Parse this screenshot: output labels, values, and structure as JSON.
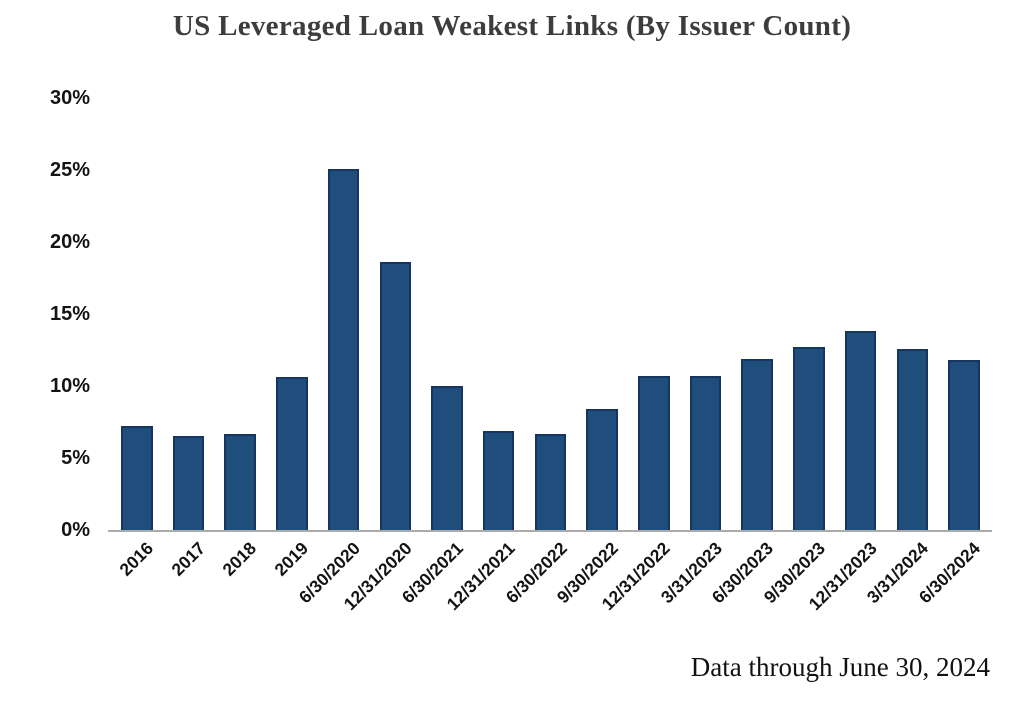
{
  "title": "US Leveraged Loan Weakest Links (By Issuer Count)",
  "footnote": "Data through June 30, 2024",
  "chart_data": {
    "type": "bar",
    "title": "US Leveraged Loan Weakest Links (By Issuer Count)",
    "categories": [
      "2016",
      "2017",
      "2018",
      "2019",
      "6/30/2020",
      "12/31/2020",
      "6/30/2021",
      "12/31/2021",
      "6/30/2022",
      "9/30/2022",
      "12/31/2022",
      "3/31/2023",
      "6/30/2023",
      "9/30/2023",
      "12/31/2023",
      "3/31/2024",
      "6/30/2024"
    ],
    "values": [
      7.2,
      6.5,
      6.7,
      10.6,
      25.1,
      18.6,
      10.0,
      6.9,
      6.7,
      8.4,
      10.7,
      10.7,
      11.9,
      12.7,
      13.8,
      12.6,
      11.8
    ],
    "value_unit": "%",
    "xlabel": "",
    "ylabel": "",
    "yticks": [
      0,
      5,
      10,
      15,
      20,
      25,
      30
    ],
    "ytick_suffix": "%",
    "ylim": [
      0,
      30
    ],
    "grid": false,
    "legend": false,
    "annotation": "Data through June 30, 2024",
    "colors": {
      "bar_fill": "#1f4e7d",
      "bar_border": "#16365f",
      "axis_line": "#ababab",
      "title_text": "#3d3d3d",
      "tick_text": "#141414"
    }
  }
}
